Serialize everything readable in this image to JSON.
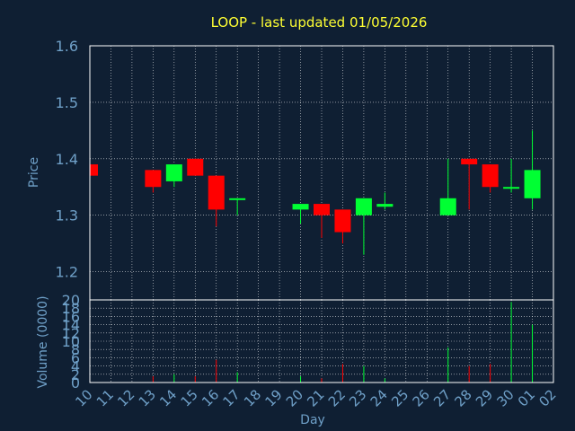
{
  "chart_data": [
    {
      "type": "candlestick",
      "title": "LOOP - last updated 01/05/2026",
      "ylabel": "Price",
      "ylim": [
        1.15,
        1.6
      ],
      "yticks": [
        "1.2",
        "1.3",
        "1.4",
        "1.5",
        "1.6"
      ],
      "grid": true,
      "colors": {
        "up": "#00ff33",
        "down": "#ff0000"
      },
      "x": [
        "10",
        "11",
        "12",
        "13",
        "14",
        "15",
        "16",
        "17",
        "18",
        "19",
        "20",
        "21",
        "22",
        "23",
        "24",
        "25",
        "26",
        "27",
        "28",
        "29",
        "30",
        "01",
        "02"
      ],
      "candles": [
        {
          "x": "10",
          "open": 1.39,
          "close": 1.37,
          "high": 1.39,
          "low": 1.37
        },
        {
          "x": "13",
          "open": 1.38,
          "close": 1.35,
          "high": 1.38,
          "low": 1.34
        },
        {
          "x": "14",
          "open": 1.36,
          "close": 1.39,
          "high": 1.39,
          "low": 1.35
        },
        {
          "x": "15",
          "open": 1.4,
          "close": 1.37,
          "high": 1.4,
          "low": 1.37
        },
        {
          "x": "16",
          "open": 1.37,
          "close": 1.31,
          "high": 1.37,
          "low": 1.28
        },
        {
          "x": "17",
          "open": 1.33,
          "close": 1.33,
          "high": 1.33,
          "low": 1.3
        },
        {
          "x": "20",
          "open": 1.31,
          "close": 1.32,
          "high": 1.32,
          "low": 1.285
        },
        {
          "x": "21",
          "open": 1.32,
          "close": 1.3,
          "high": 1.32,
          "low": 1.26
        },
        {
          "x": "22",
          "open": 1.31,
          "close": 1.27,
          "high": 1.31,
          "low": 1.25
        },
        {
          "x": "23",
          "open": 1.3,
          "close": 1.33,
          "high": 1.33,
          "low": 1.23
        },
        {
          "x": "24",
          "open": 1.315,
          "close": 1.32,
          "high": 1.34,
          "low": 1.31
        },
        {
          "x": "27",
          "open": 1.3,
          "close": 1.33,
          "high": 1.4,
          "low": 1.3
        },
        {
          "x": "28",
          "open": 1.4,
          "close": 1.39,
          "high": 1.4,
          "low": 1.31
        },
        {
          "x": "29",
          "open": 1.39,
          "close": 1.35,
          "high": 1.39,
          "low": 1.34
        },
        {
          "x": "30",
          "open": 1.35,
          "close": 1.35,
          "high": 1.4,
          "low": 1.34
        },
        {
          "x": "01",
          "open": 1.33,
          "close": 1.38,
          "high": 1.45,
          "low": 1.31
        }
      ]
    },
    {
      "type": "bar",
      "ylabel": "Volume (0000)",
      "xlabel": "Day",
      "ylim": [
        0,
        20
      ],
      "yticks": [
        "0",
        "2",
        "4",
        "6",
        "8",
        "10",
        "12",
        "14",
        "16",
        "18",
        "20"
      ],
      "grid": true,
      "x": [
        "10",
        "11",
        "12",
        "13",
        "14",
        "15",
        "16",
        "17",
        "18",
        "19",
        "20",
        "21",
        "22",
        "23",
        "24",
        "25",
        "26",
        "27",
        "28",
        "29",
        "30",
        "01",
        "02"
      ],
      "values": [
        {
          "x": "13",
          "value": 1.5,
          "color": "#ff0000"
        },
        {
          "x": "14",
          "value": 2,
          "color": "#00ff33"
        },
        {
          "x": "15",
          "value": 1.5,
          "color": "#ff0000"
        },
        {
          "x": "16",
          "value": 5.5,
          "color": "#ff0000"
        },
        {
          "x": "17",
          "value": 2.5,
          "color": "#00ff33"
        },
        {
          "x": "20",
          "value": 1.5,
          "color": "#00ff33"
        },
        {
          "x": "21",
          "value": 1,
          "color": "#ff0000"
        },
        {
          "x": "22",
          "value": 4.5,
          "color": "#ff0000"
        },
        {
          "x": "23",
          "value": 4,
          "color": "#00ff33"
        },
        {
          "x": "24",
          "value": 1,
          "color": "#00ff33"
        },
        {
          "x": "27",
          "value": 8.5,
          "color": "#00ff33"
        },
        {
          "x": "28",
          "value": 4,
          "color": "#ff0000"
        },
        {
          "x": "29",
          "value": 4.5,
          "color": "#ff0000"
        },
        {
          "x": "30",
          "value": 19.5,
          "color": "#00ff33"
        },
        {
          "x": "01",
          "value": 14,
          "color": "#00ff33"
        }
      ]
    }
  ]
}
